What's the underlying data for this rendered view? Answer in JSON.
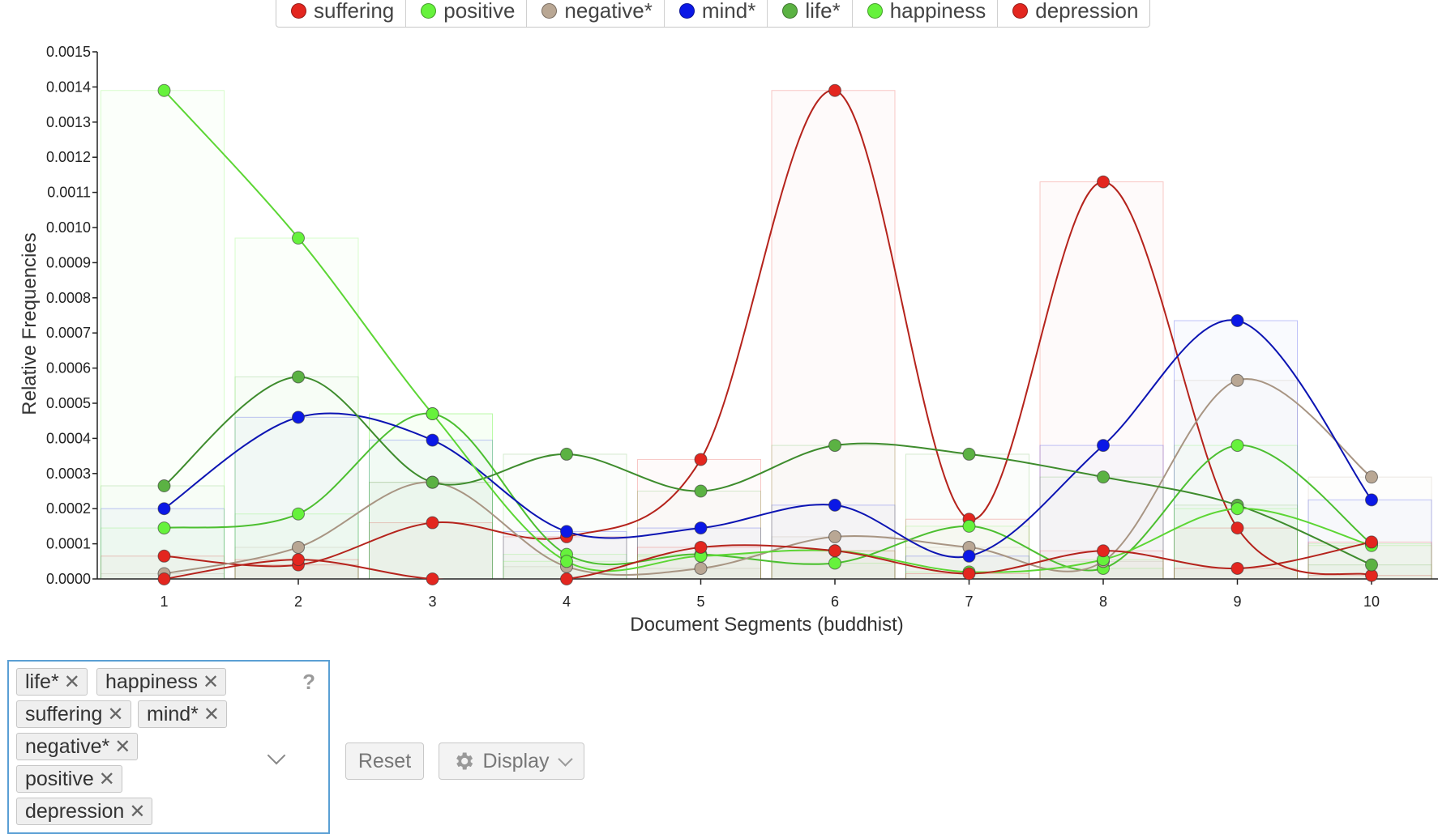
{
  "legend": [
    {
      "label": "suffering",
      "color": "#e3261f"
    },
    {
      "label": "positive",
      "color": "#66f23c"
    },
    {
      "label": "negative*",
      "color": "#b9a794"
    },
    {
      "label": "mind*",
      "color": "#0b18e6"
    },
    {
      "label": "life*",
      "color": "#5bb243"
    },
    {
      "label": "happiness",
      "color": "#66f23c"
    },
    {
      "label": "depression",
      "color": "#e3261f"
    }
  ],
  "chart_data": {
    "type": "line",
    "xlabel": "Document Segments (buddhist)",
    "ylabel": "Relative Frequencies",
    "x": [
      1,
      2,
      3,
      4,
      5,
      6,
      7,
      8,
      9,
      10
    ],
    "x_tick_labels": [
      "1",
      "2",
      "3",
      "4",
      "5",
      "6",
      "7",
      "8",
      "9",
      "10"
    ],
    "ylim": [
      0,
      0.0015
    ],
    "y_tick_labels": [
      "0.0000",
      "0.0001",
      "0.0002",
      "0.0003",
      "0.0004",
      "0.0005",
      "0.0006",
      "0.0007",
      "0.0008",
      "0.0009",
      "0.0010",
      "0.0011",
      "0.0012",
      "0.0013",
      "0.0014",
      "0.0015"
    ],
    "series": [
      {
        "name": "suffering",
        "color": "#e3261f",
        "line": "#b5231c",
        "values": [
          6.5e-05,
          4e-05,
          0.00016,
          0.00012,
          0.00034,
          0.00139,
          0.00017,
          0.00113,
          0.000145,
          1e-05
        ]
      },
      {
        "name": "positive",
        "color": "#66f23c",
        "line": "#4cbf30",
        "values": [
          0.000145,
          0.000185,
          0.00047,
          7e-05,
          7e-05,
          4.5e-05,
          0.00015,
          3e-05,
          0.00038,
          0.0001
        ]
      },
      {
        "name": "negative*",
        "color": "#b9a794",
        "line": "#a89583",
        "values": [
          1.5e-05,
          9e-05,
          0.000275,
          3.5e-05,
          3e-05,
          0.00012,
          9e-05,
          5e-05,
          0.000565,
          0.00029
        ]
      },
      {
        "name": "mind*",
        "color": "#0b18e6",
        "line": "#0c14b3",
        "values": [
          0.0002,
          0.00046,
          0.000395,
          0.000135,
          0.000145,
          0.00021,
          6.5e-05,
          0.00038,
          0.000735,
          0.000225
        ]
      },
      {
        "name": "life*",
        "color": "#5bb243",
        "line": "#3e8c2d",
        "values": [
          0.000265,
          0.000575,
          0.000275,
          0.000355,
          0.00025,
          0.00038,
          0.000355,
          0.00029,
          0.00021,
          4e-05
        ]
      },
      {
        "name": "happiness",
        "color": "#66f23c",
        "line": "#5cd634",
        "values": [
          0.00139,
          0.00097,
          0.00047,
          5e-05,
          6.5e-05,
          8e-05,
          2e-05,
          5.5e-05,
          0.0002,
          9.5e-05
        ]
      },
      {
        "name": "depression",
        "color": "#e3261f",
        "line": "#b5231c",
        "values": [
          0,
          5.5e-05,
          0,
          0,
          9e-05,
          8e-05,
          1.5e-05,
          8e-05,
          3e-05,
          0.000105
        ]
      }
    ]
  },
  "terms_input": {
    "tags": [
      "life*",
      "happiness",
      "suffering",
      "mind*",
      "negative*",
      "positive",
      "depression"
    ],
    "help": "?"
  },
  "buttons": {
    "reset": "Reset",
    "display": "Display"
  }
}
